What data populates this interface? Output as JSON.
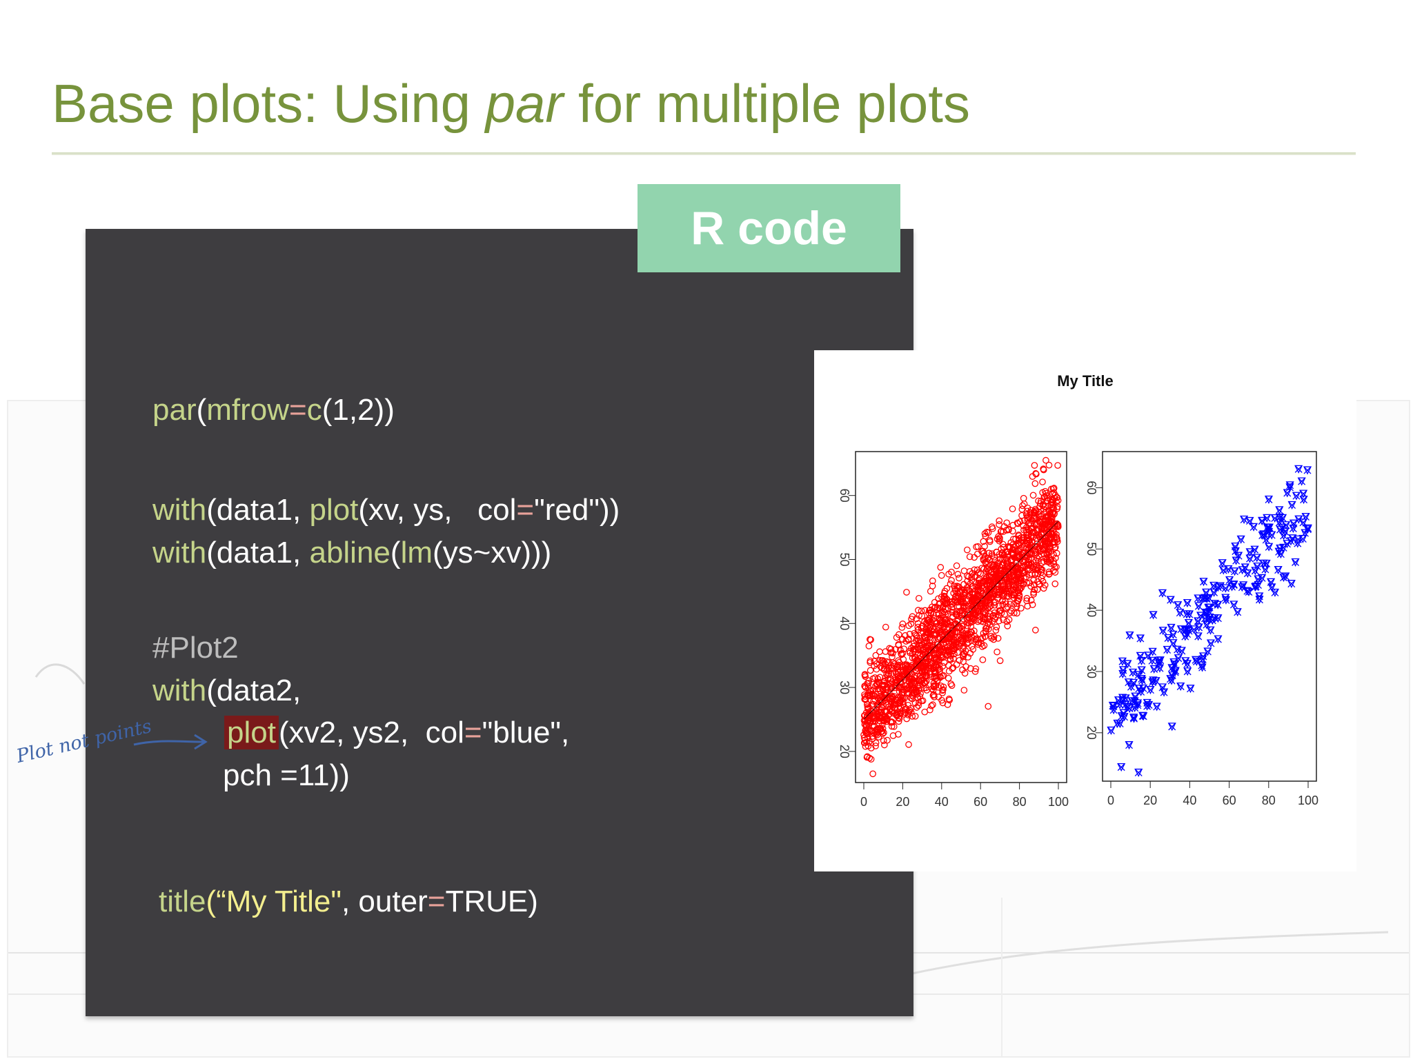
{
  "slide": {
    "title_part1": "Base plots: Using ",
    "title_emph": "par",
    "title_part2": "  for multiple plots",
    "badge": "R code"
  },
  "code": {
    "line1": {
      "fn": "par",
      "p1": "(",
      "arg": "mfrow",
      "eq": "=",
      "fn2": "c",
      "rest": "(1,2))"
    },
    "line2": {
      "fn": "with",
      "a": "(data1, ",
      "fn2": "plot",
      "b": "(xv, ys,   col",
      "eq": "=",
      "c": "\"red\"))"
    },
    "line3": {
      "fn": "with",
      "a": "(data1, ",
      "fn2": "abline",
      "b": "(",
      "fn3": "lm",
      "c": "(ys~xv)))"
    },
    "line4": {
      "comment": "#Plot2"
    },
    "line5": {
      "fn": "with",
      "a": "(data2,"
    },
    "line6": {
      "fn": "plot",
      "a": "(xv2, ys2,  col",
      "eq": "=",
      "b": "\"blue\","
    },
    "line7": {
      "a": "pch =11))"
    },
    "line8": {
      "fn": "title",
      "str": "(“My Title\"",
      "a": ", outer",
      "eq": "=",
      "b": "TRUE)"
    }
  },
  "annotation": {
    "text": "Plot not points"
  },
  "chart_data": [
    {
      "type": "scatter",
      "title": "My Title",
      "color": "#ff0000",
      "marker": "open-circle",
      "xlim": [
        0,
        100
      ],
      "ylim": [
        16,
        66
      ],
      "xticks": [
        "0",
        "20",
        "40",
        "60",
        "80",
        "100"
      ],
      "yticks": [
        "20",
        "30",
        "40",
        "50",
        "60"
      ],
      "regression_line": {
        "x": [
          0,
          100
        ],
        "y": [
          25,
          56
        ]
      },
      "points_description_count": 2000,
      "trend": {
        "slope": 0.31,
        "intercept": 25,
        "spread": 4
      }
    },
    {
      "type": "scatter",
      "color": "#0000ff",
      "marker": "pch-11-star",
      "xlim": [
        0,
        100
      ],
      "ylim": [
        13,
        65
      ],
      "xticks": [
        "0",
        "20",
        "40",
        "60",
        "80",
        "100"
      ],
      "yticks": [
        "20",
        "30",
        "40",
        "50",
        "60"
      ],
      "points_description_count": 250,
      "trend": {
        "slope": 0.35,
        "intercept": 22,
        "spread": 4
      }
    }
  ]
}
